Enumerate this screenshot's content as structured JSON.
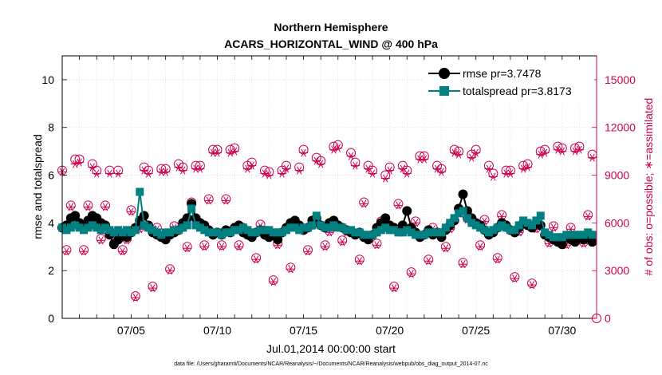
{
  "chart_data": {
    "type": "line",
    "title": "Northern Hemisphere",
    "subtitle": "ACARS_HORIZONTAL_WIND @ 400 hPa",
    "xlabel": "Jul.01,2014 00:00:00 start",
    "ylabel": "rmse and totalspread",
    "ylabel_right": "# of obs: o=possible; ∗=assimilated",
    "footer": "data file: /Users/gharamti/Documents/NCAR/Reanalysis/~/Documents/NCAR/Reanalysis/webpub/obs_diag_output_2014-07.nc",
    "xlim": [
      1.0,
      32.0
    ],
    "ylim": [
      0,
      11
    ],
    "ylim_right": [
      0,
      16500
    ],
    "x_ticks": [
      {
        "value": 5,
        "label": "07/05"
      },
      {
        "value": 10,
        "label": "07/10"
      },
      {
        "value": 15,
        "label": "07/15"
      },
      {
        "value": 20,
        "label": "07/20"
      },
      {
        "value": 25,
        "label": "07/25"
      },
      {
        "value": 30,
        "label": "07/30"
      }
    ],
    "y_ticks": [
      0,
      2,
      4,
      6,
      8,
      10
    ],
    "y_ticks_right": [
      0,
      3000,
      6000,
      9000,
      12000,
      15000
    ],
    "legend": {
      "placement": "top-right",
      "entries": [
        "rmse pr=3.7478",
        "totalspread pr=3.8173"
      ]
    },
    "colors": {
      "rmse": "#000000",
      "totalspread": "#008080",
      "obs": "#d0004f"
    },
    "grid": true,
    "series": [
      {
        "name": "rmse",
        "label": "rmse pr=3.7478",
        "x": [
          1.0,
          1.25,
          1.5,
          1.75,
          2.0,
          2.25,
          2.5,
          2.75,
          3.0,
          3.25,
          3.5,
          3.75,
          4.0,
          4.25,
          4.5,
          4.75,
          5.0,
          5.25,
          5.5,
          5.75,
          6.0,
          6.25,
          6.5,
          6.75,
          7.0,
          7.25,
          7.5,
          7.75,
          8.0,
          8.25,
          8.5,
          8.75,
          9.0,
          9.25,
          9.5,
          9.75,
          10.0,
          10.25,
          10.5,
          10.75,
          11.0,
          11.25,
          11.5,
          11.75,
          12.0,
          12.25,
          12.5,
          12.75,
          13.0,
          13.25,
          13.5,
          13.75,
          14.0,
          14.25,
          14.5,
          14.75,
          15.0,
          15.25,
          15.5,
          15.75,
          16.0,
          16.25,
          16.5,
          16.75,
          17.0,
          17.25,
          17.5,
          17.75,
          18.0,
          18.25,
          18.5,
          18.75,
          19.0,
          19.25,
          19.5,
          19.75,
          20.0,
          20.25,
          20.5,
          20.75,
          21.0,
          21.25,
          21.5,
          21.75,
          22.0,
          22.25,
          22.5,
          22.75,
          23.0,
          23.25,
          23.5,
          23.75,
          24.0,
          24.25,
          24.5,
          24.75,
          25.0,
          25.25,
          25.5,
          25.75,
          26.0,
          26.25,
          26.5,
          26.75,
          27.0,
          27.25,
          27.5,
          27.75,
          28.0,
          28.25,
          28.5,
          28.75,
          29.0,
          29.25,
          29.5,
          29.75,
          30.0,
          30.25,
          30.5,
          30.75,
          31.0,
          31.25,
          31.5,
          31.75
        ],
        "values": [
          3.8,
          3.9,
          4.2,
          4.3,
          4.0,
          3.9,
          4.1,
          4.3,
          4.2,
          4.0,
          3.9,
          3.5,
          3.1,
          3.3,
          3.5,
          3.4,
          3.6,
          3.8,
          4.1,
          4.3,
          3.9,
          3.6,
          3.5,
          3.4,
          3.3,
          3.5,
          3.6,
          3.7,
          4.0,
          4.2,
          4.8,
          4.2,
          4.0,
          3.9,
          3.7,
          3.5,
          3.6,
          3.5,
          3.7,
          3.6,
          3.8,
          3.9,
          3.6,
          3.5,
          3.4,
          3.6,
          3.7,
          3.5,
          3.4,
          3.5,
          3.3,
          3.6,
          3.8,
          4.0,
          4.1,
          3.9,
          3.7,
          3.8,
          4.1,
          4.2,
          3.9,
          3.8,
          4.0,
          4.1,
          3.9,
          3.8,
          3.7,
          3.6,
          3.5,
          3.6,
          3.4,
          3.3,
          3.5,
          3.8,
          4.0,
          4.2,
          3.9,
          3.8,
          3.7,
          3.9,
          4.5,
          3.8,
          3.6,
          3.4,
          3.5,
          3.7,
          3.5,
          3.6,
          3.4,
          3.7,
          3.9,
          4.1,
          4.6,
          5.2,
          4.5,
          4.2,
          4.0,
          3.9,
          3.7,
          3.5,
          3.6,
          3.8,
          4.0,
          3.9,
          3.7,
          3.6,
          3.8,
          4.0,
          3.9,
          3.8,
          4.0,
          3.9,
          3.5,
          3.4,
          3.3,
          3.2,
          3.1,
          3.4,
          3.3,
          3.2,
          3.4,
          3.3,
          3.5,
          3.2
        ]
      },
      {
        "name": "totalspread",
        "label": "totalspread pr=3.8173",
        "x": [
          1.0,
          1.25,
          1.5,
          1.75,
          2.0,
          2.25,
          2.5,
          2.75,
          3.0,
          3.25,
          3.5,
          3.75,
          4.0,
          4.25,
          4.5,
          4.75,
          5.0,
          5.25,
          5.5,
          5.75,
          6.0,
          6.25,
          6.5,
          6.75,
          7.0,
          7.25,
          7.5,
          7.75,
          8.0,
          8.25,
          8.5,
          8.75,
          9.0,
          9.25,
          9.5,
          9.75,
          10.0,
          10.25,
          10.5,
          10.75,
          11.0,
          11.25,
          11.5,
          11.75,
          12.0,
          12.25,
          12.5,
          12.75,
          13.0,
          13.25,
          13.5,
          13.75,
          14.0,
          14.25,
          14.5,
          14.75,
          15.0,
          15.25,
          15.5,
          15.75,
          16.0,
          16.25,
          16.5,
          16.75,
          17.0,
          17.25,
          17.5,
          17.75,
          18.0,
          18.25,
          18.5,
          18.75,
          19.0,
          19.25,
          19.5,
          19.75,
          20.0,
          20.25,
          20.5,
          20.75,
          21.0,
          21.25,
          21.5,
          21.75,
          22.0,
          22.25,
          22.5,
          22.75,
          23.0,
          23.25,
          23.5,
          23.75,
          24.0,
          24.25,
          24.5,
          24.75,
          25.0,
          25.25,
          25.5,
          25.75,
          26.0,
          26.25,
          26.5,
          26.75,
          27.0,
          27.25,
          27.5,
          27.75,
          28.0,
          28.25,
          28.5,
          28.75,
          29.0,
          29.25,
          29.5,
          29.75,
          30.0,
          30.25,
          30.5,
          30.75,
          31.0,
          31.25,
          31.5,
          31.75
        ],
        "values": [
          3.8,
          3.7,
          3.8,
          3.9,
          3.8,
          3.7,
          3.8,
          3.9,
          3.8,
          3.7,
          3.8,
          3.7,
          3.6,
          3.7,
          3.6,
          3.7,
          3.6,
          3.7,
          5.3,
          3.9,
          3.8,
          3.7,
          3.6,
          3.5,
          3.6,
          3.6,
          3.7,
          3.7,
          3.8,
          3.9,
          4.6,
          3.9,
          3.8,
          3.7,
          3.6,
          3.6,
          3.6,
          3.5,
          3.6,
          3.6,
          3.7,
          3.7,
          3.8,
          3.7,
          3.6,
          3.6,
          3.7,
          3.7,
          3.7,
          3.6,
          3.6,
          3.6,
          3.7,
          3.8,
          3.8,
          3.7,
          3.8,
          3.8,
          3.9,
          4.3,
          3.9,
          3.8,
          3.8,
          3.9,
          3.8,
          3.8,
          3.7,
          3.7,
          3.6,
          3.6,
          3.5,
          3.5,
          3.5,
          3.6,
          3.7,
          3.8,
          3.7,
          3.7,
          3.6,
          3.6,
          3.7,
          3.6,
          3.5,
          3.5,
          3.5,
          3.6,
          3.6,
          3.6,
          3.6,
          3.8,
          4.0,
          4.2,
          4.4,
          4.5,
          4.2,
          4.0,
          3.9,
          3.8,
          3.7,
          3.6,
          3.7,
          3.8,
          3.9,
          3.8,
          3.7,
          3.7,
          3.9,
          4.1,
          4.0,
          3.9,
          4.1,
          4.3,
          3.6,
          3.5,
          3.4,
          3.4,
          3.4,
          3.5,
          3.5,
          3.5,
          3.5,
          3.5,
          3.6,
          3.5
        ]
      }
    ],
    "obs": {
      "x": [
        1.0,
        1.25,
        1.5,
        1.75,
        2.0,
        2.25,
        2.5,
        2.75,
        3.0,
        3.25,
        3.5,
        3.75,
        4.0,
        4.25,
        4.5,
        4.75,
        5.0,
        5.25,
        5.5,
        5.75,
        6.0,
        6.25,
        6.5,
        6.75,
        7.0,
        7.25,
        7.5,
        7.75,
        8.0,
        8.25,
        8.5,
        8.75,
        9.0,
        9.25,
        9.5,
        9.75,
        10.0,
        10.25,
        10.5,
        10.75,
        11.0,
        11.25,
        11.5,
        11.75,
        12.0,
        12.25,
        12.5,
        12.75,
        13.0,
        13.25,
        13.5,
        13.75,
        14.0,
        14.25,
        14.5,
        14.75,
        15.0,
        15.25,
        15.5,
        15.75,
        16.0,
        16.25,
        16.5,
        16.75,
        17.0,
        17.25,
        17.5,
        17.75,
        18.0,
        18.25,
        18.5,
        18.75,
        19.0,
        19.25,
        19.5,
        19.75,
        20.0,
        20.25,
        20.5,
        20.75,
        21.0,
        21.25,
        21.5,
        21.75,
        22.0,
        22.25,
        22.5,
        22.75,
        23.0,
        23.25,
        23.5,
        23.75,
        24.0,
        24.25,
        24.5,
        24.75,
        25.0,
        25.25,
        25.5,
        25.75,
        26.0,
        26.25,
        26.5,
        26.75,
        27.0,
        27.25,
        27.5,
        27.75,
        28.0,
        28.25,
        28.5,
        28.75,
        29.0,
        29.25,
        29.5,
        29.75,
        30.0,
        30.25,
        30.5,
        30.75,
        31.0,
        31.25,
        31.5,
        31.75
      ],
      "possible": [
        9300,
        4300,
        7100,
        10000,
        10000,
        4300,
        7100,
        9700,
        9300,
        5000,
        7100,
        9300,
        4700,
        9300,
        4300,
        5000,
        6800,
        1400,
        5700,
        9500,
        9300,
        2000,
        5700,
        9400,
        9400,
        3100,
        5800,
        9700,
        9500,
        4500,
        7300,
        9600,
        9600,
        4600,
        7500,
        10600,
        10600,
        4600,
        7500,
        10600,
        10700,
        4600,
        5700,
        9600,
        9800,
        3800,
        5900,
        9300,
        9200,
        2400,
        4700,
        9300,
        9600,
        3200,
        5900,
        9500,
        10600,
        4300,
        5900,
        10100,
        9900,
        4600,
        5500,
        10800,
        10900,
        4900,
        5500,
        10400,
        9800,
        3700,
        7300,
        9600,
        9300,
        4700,
        6100,
        9000,
        9500,
        2000,
        7200,
        9600,
        9300,
        2900,
        6100,
        10200,
        10200,
        3700,
        5700,
        9600,
        9400,
        4500,
        5700,
        10600,
        10500,
        3500,
        6300,
        10300,
        10600,
        4600,
        6200,
        9600,
        9100,
        3800,
        6500,
        9300,
        9300,
        2600,
        5500,
        9600,
        9700,
        2200,
        5700,
        10500,
        10600,
        4800,
        5800,
        10800,
        10700,
        4700,
        5700,
        10700,
        10800,
        4800,
        6500,
        10300
      ],
      "assimilated": [
        9200,
        4200,
        7000,
        9700,
        9800,
        4200,
        7000,
        9500,
        9100,
        4900,
        7000,
        9100,
        4600,
        9100,
        4200,
        4900,
        6700,
        1300,
        5600,
        9300,
        9100,
        1900,
        5600,
        9200,
        9200,
        3000,
        5700,
        9500,
        9300,
        4400,
        7200,
        9400,
        9400,
        4500,
        7400,
        10400,
        10400,
        4500,
        7400,
        10400,
        10500,
        4500,
        5600,
        9400,
        9600,
        3700,
        5800,
        9100,
        9000,
        2300,
        4600,
        9100,
        9400,
        3100,
        5800,
        9300,
        10400,
        4200,
        5800,
        9900,
        9700,
        4500,
        5400,
        10600,
        10700,
        4800,
        5400,
        10200,
        9600,
        3600,
        7200,
        9400,
        9100,
        4600,
        6000,
        8800,
        9300,
        1900,
        7100,
        9400,
        9100,
        2800,
        6000,
        10000,
        10000,
        3600,
        5600,
        9400,
        9200,
        4400,
        5600,
        10400,
        10300,
        3400,
        6200,
        10100,
        10400,
        4500,
        6100,
        9400,
        8900,
        3700,
        6400,
        9100,
        9100,
        2500,
        5400,
        9400,
        9500,
        2100,
        5600,
        10300,
        10400,
        4700,
        5700,
        10600,
        10500,
        4600,
        5600,
        10500,
        10600,
        4700,
        6400,
        10100
      ]
    }
  }
}
